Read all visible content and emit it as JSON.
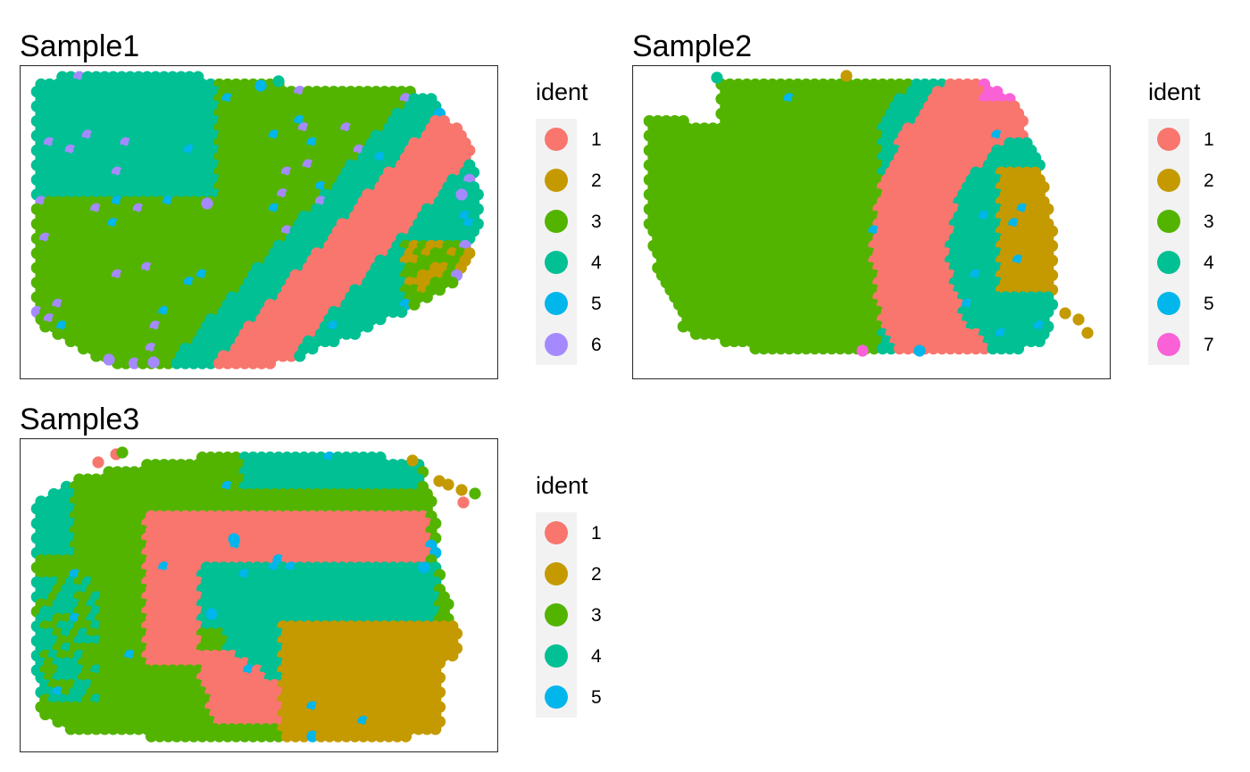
{
  "palette": {
    "1": "#F8766D",
    "2": "#C49A00",
    "3": "#53B400",
    "4": "#00C094",
    "5": "#00B6EB",
    "6": "#A58AFF",
    "7": "#FB61D7"
  },
  "chart_data": [
    {
      "type": "scatter",
      "title": "Sample1",
      "legend_title": "ident",
      "legend_position": "right",
      "grid": false,
      "axes": "none",
      "legend": [
        "1",
        "2",
        "3",
        "4",
        "5",
        "6"
      ]
    },
    {
      "type": "scatter",
      "title": "Sample2",
      "legend_title": "ident",
      "legend_position": "right",
      "grid": false,
      "axes": "none",
      "legend": [
        "1",
        "2",
        "3",
        "4",
        "5",
        "7"
      ]
    },
    {
      "type": "scatter",
      "title": "Sample3",
      "legend_title": "ident",
      "legend_position": "right",
      "grid": false,
      "axes": "none",
      "legend": [
        "1",
        "2",
        "3",
        "4",
        "5"
      ]
    }
  ]
}
